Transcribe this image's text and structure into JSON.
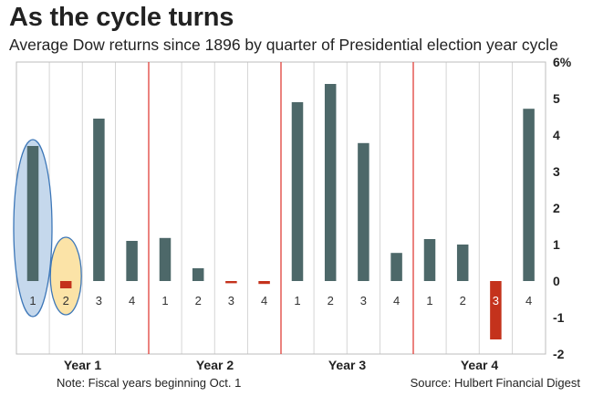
{
  "header": {
    "title": "As the cycle turns",
    "subtitle": "Average Dow returns since 1896 by quarter of Presidential election year cycle"
  },
  "footer": {
    "note": "Note: Fiscal years beginning Oct. 1",
    "source": "Source: Hulbert Financial Digest"
  },
  "colors": {
    "bar": "#4d6869",
    "negative_bar": "#c4321c",
    "divider": "#e0403a",
    "grid": "#d6d6d6",
    "highlight_q1_fill": "#c5d8ec",
    "highlight_q1_stroke": "#3d77b8",
    "highlight_q2_fill": "#fbe3a7",
    "highlight_q2_stroke": "#3d77b8",
    "accent_small_negative": "#c4321c"
  },
  "chart_data": {
    "type": "bar",
    "title": "As the cycle turns",
    "subtitle": "Average Dow returns since 1896 by quarter of Presidential election year cycle",
    "xlabel": "",
    "ylabel": "",
    "ylim": [
      -2,
      6
    ],
    "yticks": [
      -2,
      -1,
      0,
      1,
      2,
      3,
      4,
      5,
      6
    ],
    "ytick_labels": [
      "-2",
      "-1",
      "0",
      "1",
      "2",
      "3",
      "4",
      "5",
      "6%"
    ],
    "grid": "vertical-lines",
    "groups": [
      {
        "label": "Year 1",
        "categories": [
          "1",
          "2",
          "3",
          "4"
        ],
        "values": [
          3.7,
          -0.2,
          4.45,
          1.1
        ]
      },
      {
        "label": "Year 2",
        "categories": [
          "1",
          "2",
          "3",
          "4"
        ],
        "values": [
          1.18,
          0.35,
          -0.06,
          -0.08
        ]
      },
      {
        "label": "Year 3",
        "categories": [
          "1",
          "2",
          "3",
          "4"
        ],
        "values": [
          4.9,
          5.4,
          3.78,
          0.77
        ]
      },
      {
        "label": "Year 4",
        "categories": [
          "1",
          "2",
          "3",
          "4"
        ],
        "values": [
          1.15,
          1.0,
          -1.6,
          4.72
        ]
      }
    ],
    "highlighted": [
      {
        "group": 0,
        "index": 0,
        "color": "#c5d8ec"
      },
      {
        "group": 0,
        "index": 1,
        "color": "#fbe3a7"
      }
    ]
  }
}
